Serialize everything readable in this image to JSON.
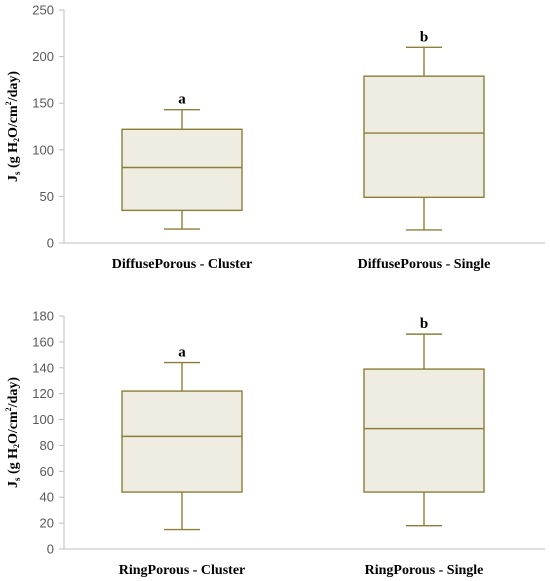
{
  "chart_data": [
    {
      "type": "boxplot",
      "ylabel": {
        "base": "J",
        "sub1": "s",
        "pre": " (g H",
        "sub2": "2",
        "mid": "O/cm",
        "sup": "2",
        "post": "/day)"
      },
      "ylim": [
        0,
        250
      ],
      "ticks": [
        0,
        50,
        100,
        150,
        200,
        250
      ],
      "grid": false,
      "box_fill": "#efece1",
      "box_stroke": "#8b7d3a",
      "axis_color": "#bfbfbf",
      "categories": [
        {
          "name": "DiffusePorous - Cluster",
          "min": 15,
          "q1": 35,
          "median": 81,
          "q3": 122,
          "max": 143,
          "letter": "a"
        },
        {
          "name": "DiffusePorous - Single",
          "min": 14,
          "q1": 49,
          "median": 118,
          "q3": 179,
          "max": 210,
          "letter": "b"
        }
      ]
    },
    {
      "type": "boxplot",
      "ylabel": {
        "base": "J",
        "sub1": "s",
        "pre": " (g H",
        "sub2": "2",
        "mid": "O/cm",
        "sup": "2",
        "post": "/day)"
      },
      "ylim": [
        0,
        180
      ],
      "ticks": [
        0,
        20,
        40,
        60,
        80,
        100,
        120,
        140,
        160,
        180
      ],
      "grid": false,
      "box_fill": "#efece1",
      "box_stroke": "#8b7d3a",
      "axis_color": "#bfbfbf",
      "categories": [
        {
          "name": "RingPorous - Cluster",
          "min": 15,
          "q1": 44,
          "median": 87,
          "q3": 122,
          "max": 144,
          "letter": "a"
        },
        {
          "name": "RingPorous - Single",
          "min": 18,
          "q1": 44,
          "median": 93,
          "q3": 139,
          "max": 166,
          "letter": "b"
        }
      ]
    }
  ]
}
